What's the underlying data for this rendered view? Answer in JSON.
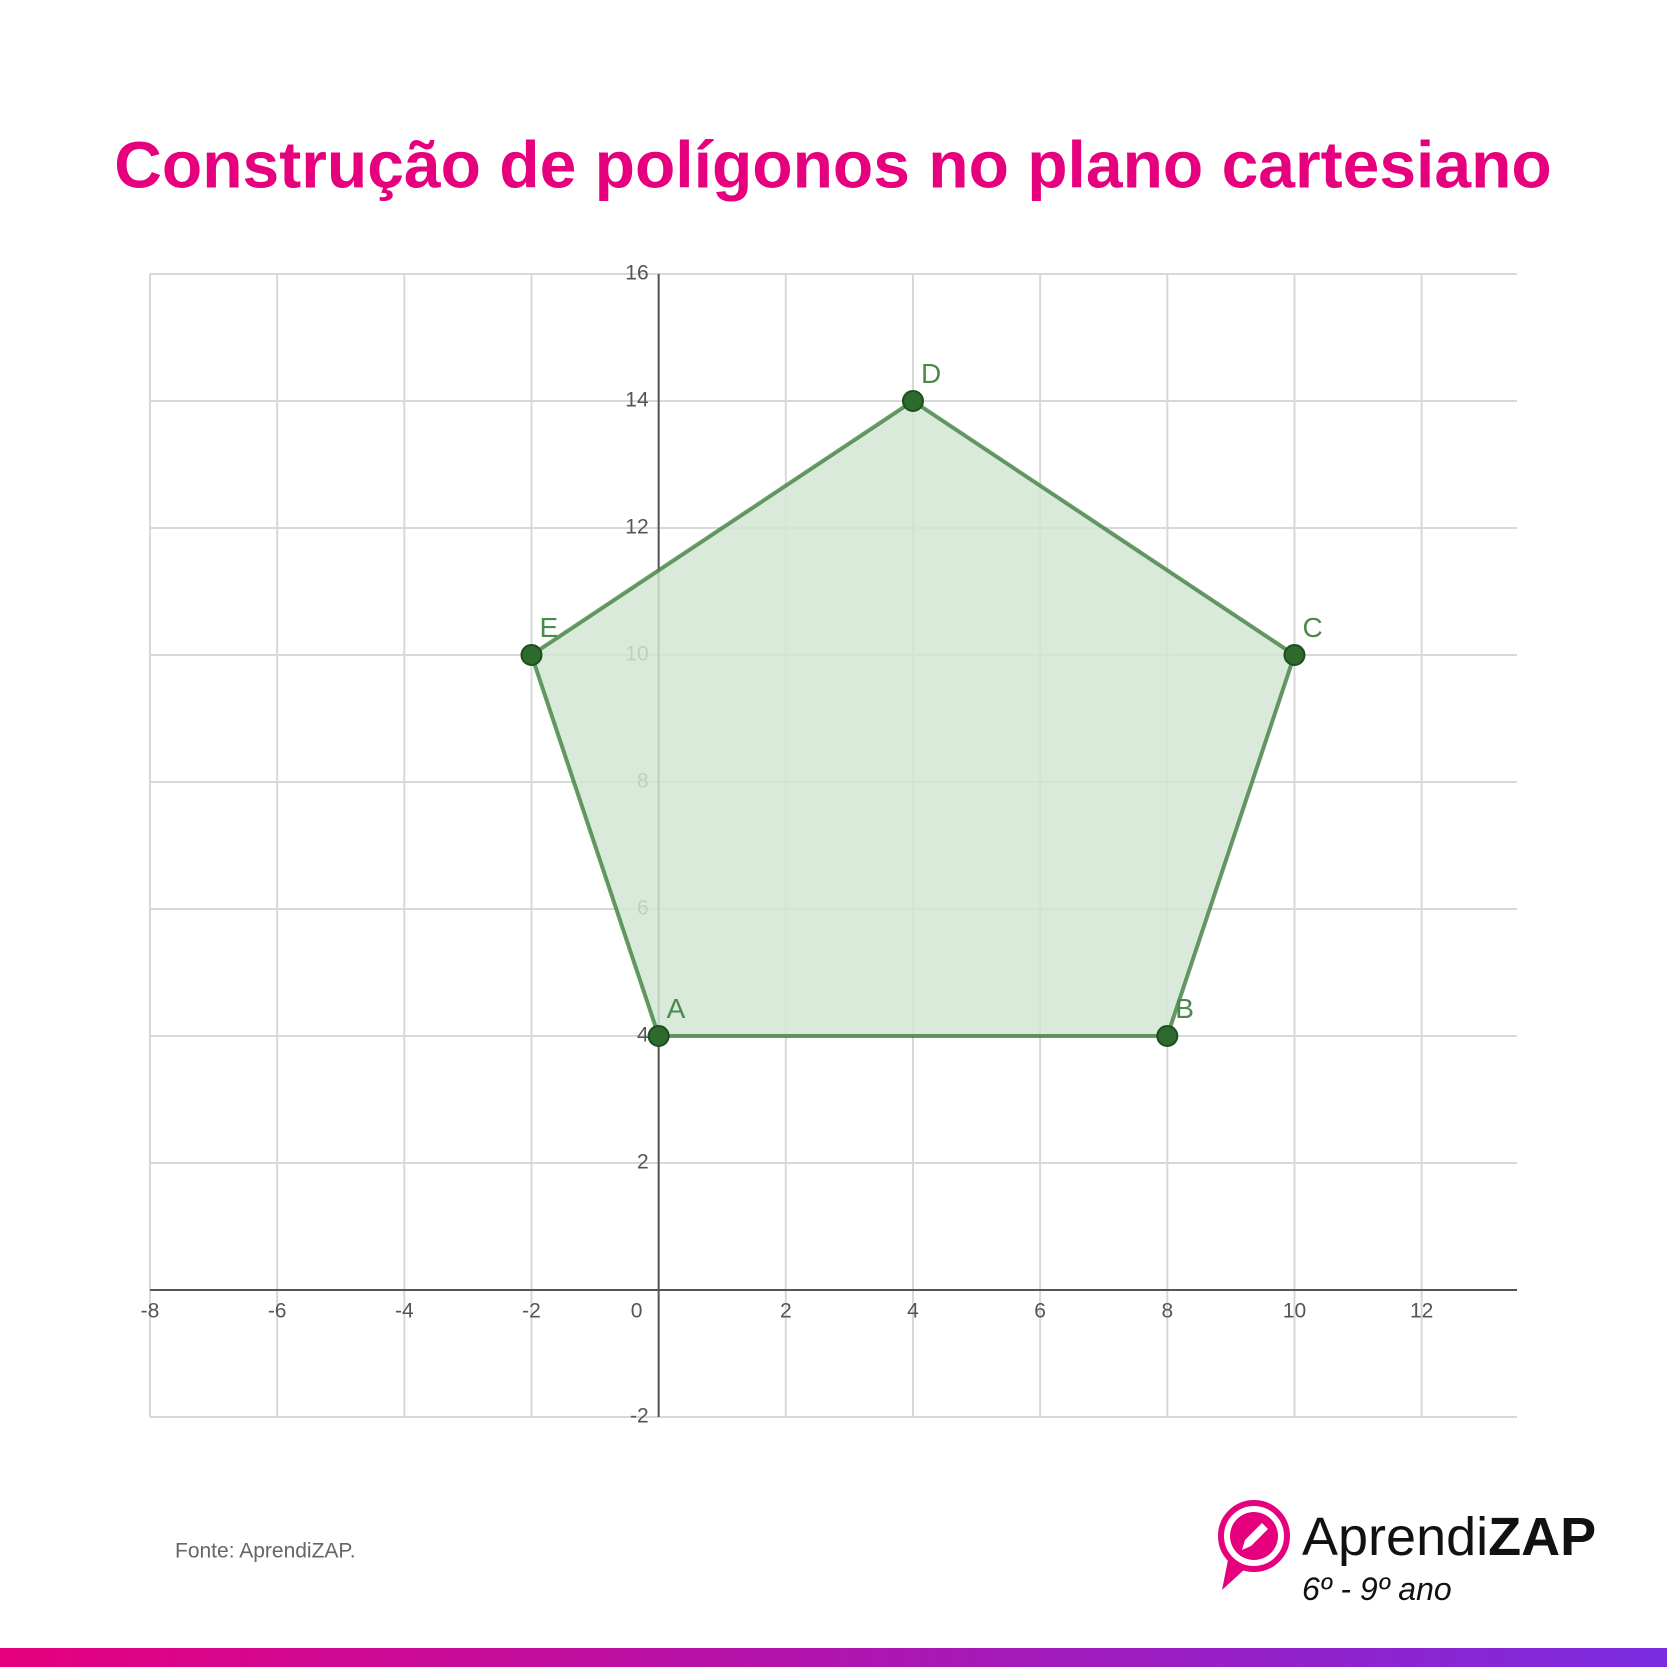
{
  "chart_data": {
    "type": "polygon",
    "title": "Construção de polígonos no plano cartesiano",
    "points": {
      "labels": [
        "A",
        "B",
        "C",
        "D",
        "E"
      ],
      "x": [
        0,
        8,
        10,
        4,
        -2
      ],
      "y": [
        4,
        4,
        10,
        14,
        10
      ]
    },
    "color": "#3f7f3f",
    "fill": "#d3e6d3",
    "xlim": [
      -8,
      13.5
    ],
    "ylim": [
      -2,
      16
    ],
    "xticks": [
      -8,
      -6,
      -4,
      -2,
      0,
      2,
      4,
      6,
      8,
      10,
      12
    ],
    "yticks": [
      -2,
      2,
      4,
      6,
      8,
      10,
      12,
      14,
      16
    ],
    "grid": true
  },
  "source": "Fonte: AprendiZAP.",
  "brand": {
    "light": "Aprendi",
    "bold": "ZAP",
    "grade": "6º - 9º ano"
  }
}
